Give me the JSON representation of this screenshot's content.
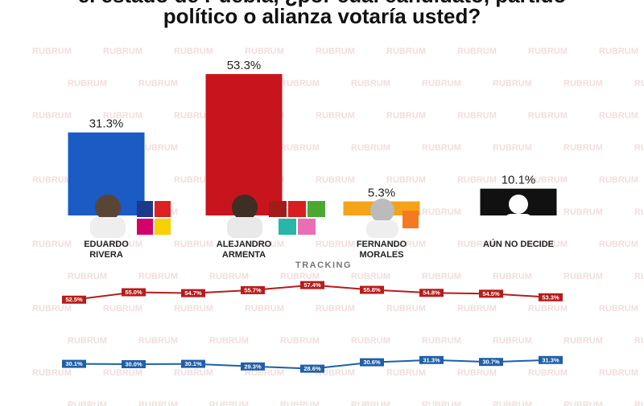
{
  "title_lines": [
    "el estado de Puebla, ¿por cuál candidato, partido",
    "político o alianza votaría usted?"
  ],
  "watermark": "RUBRUM",
  "chart_data": [
    {
      "type": "bar",
      "categories": [
        [
          "EDUARDO",
          "RIVERA"
        ],
        [
          "ALEJANDRO",
          "ARMENTA"
        ],
        [
          "FERNANDO",
          "MORALES"
        ],
        [
          "AÚN NO DECIDE"
        ]
      ],
      "values": [
        31.3,
        53.3,
        5.3,
        10.1
      ],
      "value_labels": [
        "31.3%",
        "53.3%",
        "5.3%",
        "10.1%"
      ],
      "colors": [
        "#1a5bc4",
        "#c8141c",
        "#f5a318",
        "#111111"
      ],
      "ylim": [
        0,
        60
      ]
    },
    {
      "type": "line",
      "title": "TRACKING",
      "series": [
        {
          "color": "#b71c1c",
          "values": [
            52.5,
            55.0,
            54.7,
            55.7,
            57.4,
            55.8,
            54.8,
            54.5,
            53.3
          ],
          "value_labels": [
            "52.5%",
            "55.0%",
            "54.7%",
            "55.7%",
            "57.4%",
            "55.8%",
            "54.8%",
            "54.5%",
            "53.3%"
          ],
          "ylim": [
            50,
            60
          ]
        },
        {
          "color": "#1f5fa8",
          "values": [
            30.1,
            30.0,
            30.1,
            29.3,
            28.6,
            30.6,
            31.3,
            30.7,
            31.3
          ],
          "value_labels": [
            "30.1%",
            "30.0%",
            "30.1%",
            "29.3%",
            "28.6%",
            "30.6%",
            "31.3%",
            "30.7%",
            "31.3%"
          ],
          "ylim": [
            25,
            35
          ]
        }
      ]
    }
  ]
}
